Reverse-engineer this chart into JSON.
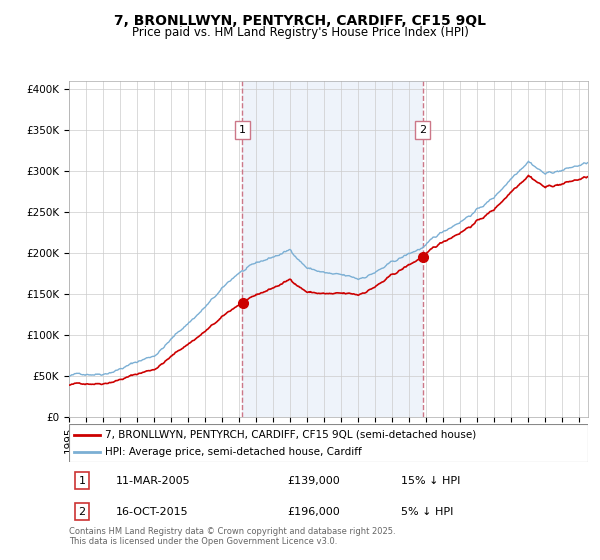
{
  "title": "7, BRONLLWYN, PENTYRCH, CARDIFF, CF15 9QL",
  "subtitle": "Price paid vs. HM Land Registry's House Price Index (HPI)",
  "ylabel_ticks": [
    "£0",
    "£50K",
    "£100K",
    "£150K",
    "£200K",
    "£250K",
    "£300K",
    "£350K",
    "£400K"
  ],
  "ytick_values": [
    0,
    50000,
    100000,
    150000,
    200000,
    250000,
    300000,
    350000,
    400000
  ],
  "ylim": [
    0,
    410000
  ],
  "xlim_start": 1995.0,
  "xlim_end": 2025.5,
  "sale1": {
    "year": 2005.19,
    "price": 139000,
    "label": "1",
    "date": "11-MAR-2005",
    "hpi_diff": "15% ↓ HPI"
  },
  "sale2": {
    "year": 2015.79,
    "price": 196000,
    "label": "2",
    "date": "16-OCT-2015",
    "hpi_diff": "5% ↓ HPI"
  },
  "line_property_color": "#cc0000",
  "line_hpi_color": "#7bafd4",
  "marker_color": "#cc0000",
  "vline_color": "#cc7788",
  "shade_color": "#e8eef8",
  "grid_color": "#cccccc",
  "background_color": "#ffffff",
  "legend_label_property": "7, BRONLLWYN, PENTYRCH, CARDIFF, CF15 9QL (semi-detached house)",
  "legend_label_hpi": "HPI: Average price, semi-detached house, Cardiff",
  "footer": "Contains HM Land Registry data © Crown copyright and database right 2025.\nThis data is licensed under the Open Government Licence v3.0.",
  "title_fontsize": 10,
  "subtitle_fontsize": 8.5,
  "tick_fontsize": 7.5,
  "legend_fontsize": 7.5
}
